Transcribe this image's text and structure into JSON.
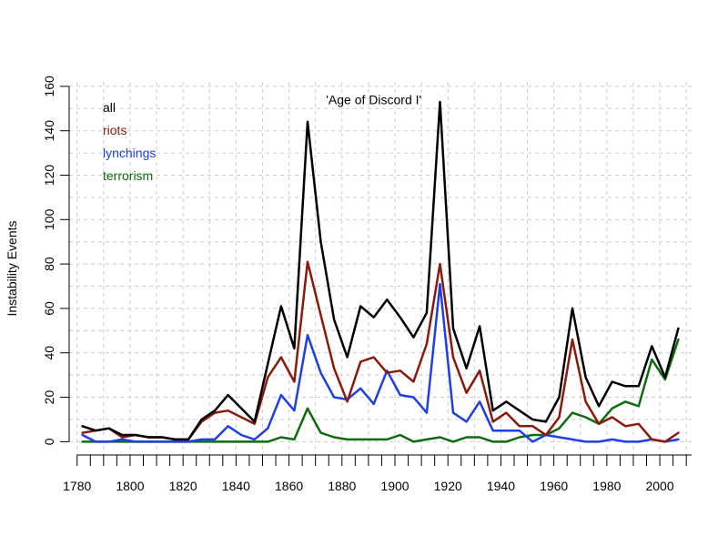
{
  "chart_data": {
    "type": "line",
    "title": "",
    "annotation": "'Age of Discord I'",
    "annotation_x": 1892,
    "annotation_y": 152,
    "xlabel": "",
    "ylabel": "Instability Events",
    "xlim": [
      1777,
      2012
    ],
    "ylim": [
      -6,
      162
    ],
    "xticks": [
      1780,
      1800,
      1820,
      1840,
      1860,
      1880,
      1900,
      1920,
      1940,
      1960,
      1980,
      2000
    ],
    "yticks": [
      0,
      20,
      40,
      60,
      80,
      100,
      120,
      140,
      160
    ],
    "grid": true,
    "legend_position": "top-left",
    "x": [
      1782,
      1787,
      1792,
      1797,
      1802,
      1807,
      1812,
      1817,
      1822,
      1827,
      1832,
      1837,
      1842,
      1847,
      1852,
      1857,
      1862,
      1867,
      1872,
      1877,
      1882,
      1887,
      1892,
      1897,
      1902,
      1907,
      1912,
      1917,
      1922,
      1927,
      1932,
      1937,
      1942,
      1947,
      1952,
      1957,
      1962,
      1967,
      1972,
      1977,
      1982,
      1987,
      1992,
      1997,
      2002,
      2007
    ],
    "series": [
      {
        "name": "all",
        "color": "#000000",
        "values": [
          7,
          5,
          6,
          3,
          3,
          2,
          2,
          1,
          1,
          10,
          14,
          21,
          15,
          9,
          35,
          61,
          42,
          144,
          90,
          55,
          38,
          61,
          56,
          64,
          56,
          47,
          58,
          153,
          51,
          33,
          52,
          14,
          18,
          14,
          10,
          9,
          20,
          60,
          29,
          16,
          27,
          25,
          25,
          43,
          29,
          51
        ]
      },
      {
        "name": "riots",
        "color": "#8b1a0a",
        "values": [
          4,
          5,
          6,
          2,
          3,
          2,
          2,
          1,
          1,
          9,
          13,
          14,
          11,
          8,
          29,
          38,
          27,
          81,
          57,
          33,
          18,
          36,
          38,
          31,
          32,
          27,
          44,
          80,
          38,
          22,
          32,
          9,
          13,
          7,
          7,
          3,
          11,
          46,
          18,
          8,
          11,
          7,
          8,
          1,
          0,
          4
        ]
      },
      {
        "name": "lynchings",
        "color": "#1f3fe6",
        "values": [
          3,
          0,
          0,
          1,
          0,
          0,
          0,
          0,
          0,
          1,
          1,
          7,
          3,
          1,
          6,
          21,
          14,
          48,
          31,
          20,
          19,
          24,
          17,
          32,
          21,
          20,
          13,
          71,
          13,
          9,
          18,
          5,
          5,
          5,
          0,
          3,
          2,
          1,
          0,
          0,
          1,
          0,
          0,
          1,
          0,
          1
        ]
      },
      {
        "name": "terrorism",
        "color": "#0f6b0f",
        "values": [
          0,
          0,
          0,
          0,
          0,
          0,
          0,
          0,
          0,
          0,
          0,
          0,
          0,
          0,
          0,
          2,
          1,
          15,
          4,
          2,
          1,
          1,
          1,
          1,
          3,
          0,
          1,
          2,
          0,
          2,
          2,
          0,
          0,
          2,
          3,
          3,
          6,
          13,
          11,
          8,
          15,
          18,
          16,
          37,
          28,
          46
        ]
      }
    ]
  }
}
